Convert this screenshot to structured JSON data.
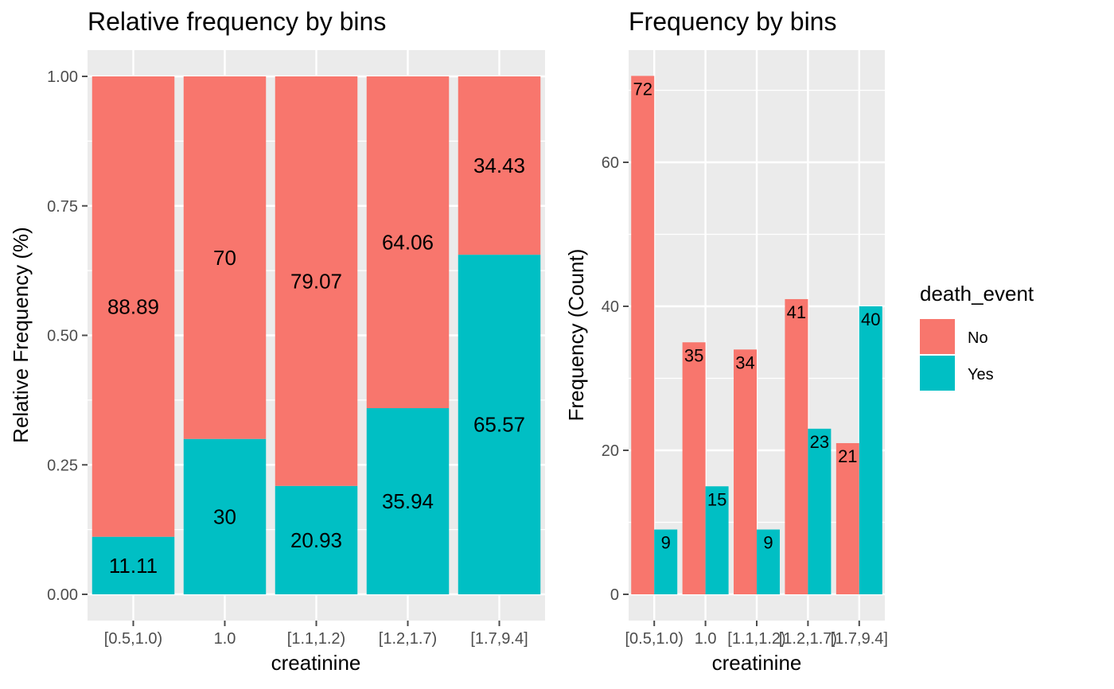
{
  "colors": {
    "No": "#F8766D",
    "Yes": "#00BFC4",
    "panel_bg": "#EBEBEB",
    "grid": "#FFFFFF",
    "tick": "#4d4d4d"
  },
  "legend": {
    "title": "death_event",
    "items": [
      "No",
      "Yes"
    ]
  },
  "chart_data": [
    {
      "type": "bar",
      "stacking": "fill",
      "title": "Relative frequency by bins",
      "xlabel": "creatinine",
      "ylabel": "Relative Frequency (%)",
      "categories": [
        "[0.5,1.0)",
        "1.0",
        "[1.1,1.2)",
        "[1.2,1.7)",
        "[1.7,9.4]"
      ],
      "ylim": [
        0,
        1
      ],
      "yticks": [
        "0.00",
        "0.25",
        "0.50",
        "0.75",
        "1.00"
      ],
      "series": [
        {
          "name": "No",
          "values": [
            0.8889,
            0.7,
            0.7907,
            0.6406,
            0.3443
          ],
          "labels": [
            "88.89",
            "70",
            "79.07",
            "64.06",
            "34.43"
          ]
        },
        {
          "name": "Yes",
          "values": [
            0.1111,
            0.3,
            0.2093,
            0.3594,
            0.6557
          ],
          "labels": [
            "11.11",
            "30",
            "20.93",
            "35.94",
            "65.57"
          ]
        }
      ],
      "grid": true
    },
    {
      "type": "bar",
      "stacking": "dodge",
      "title": "Frequency by bins",
      "xlabel": "creatinine",
      "ylabel": "Frequency (Count)",
      "categories": [
        "[0.5,1.0)",
        "1.0",
        "[1.1,1.2)",
        "[1.2,1.7)",
        "[1.7,9.4]"
      ],
      "ylim": [
        0,
        75
      ],
      "yticks": [
        "0",
        "20",
        "40",
        "60"
      ],
      "series": [
        {
          "name": "No",
          "values": [
            72,
            35,
            34,
            41,
            21
          ]
        },
        {
          "name": "Yes",
          "values": [
            9,
            15,
            9,
            23,
            40
          ]
        }
      ],
      "grid": true,
      "legend": "right"
    }
  ]
}
